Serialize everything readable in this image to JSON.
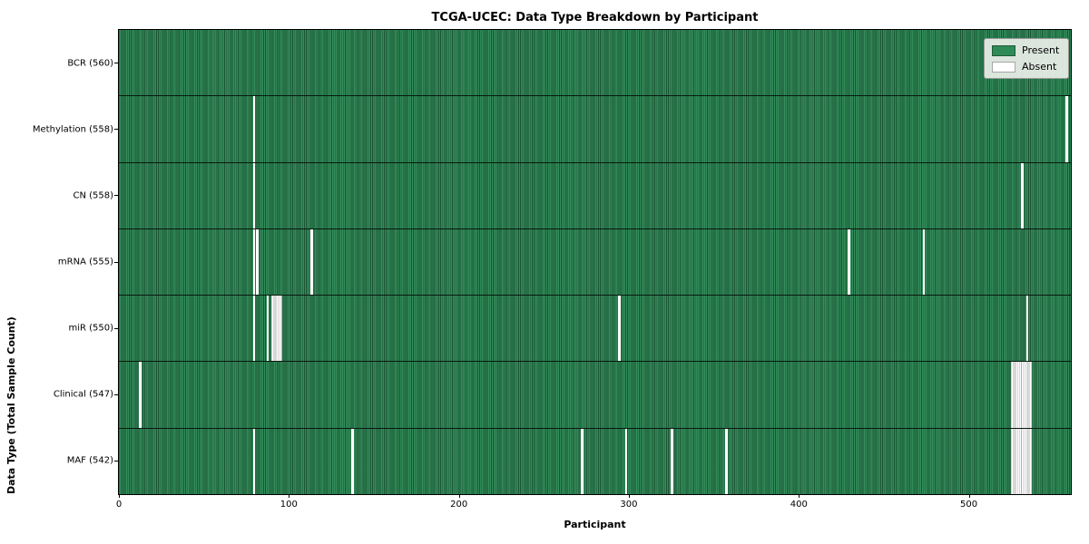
{
  "chart_data": {
    "type": "heatmap",
    "title": "TCGA-UCEC: Data Type Breakdown by Participant",
    "xlabel": "Participant",
    "ylabel": "Data Type (Total Sample Count)",
    "total_participants": 560,
    "x_ticks": [
      0,
      100,
      200,
      300,
      400,
      500
    ],
    "grid": false,
    "legend_position": "upper right",
    "legend": [
      {
        "label": "Present",
        "color": "#2e8b57"
      },
      {
        "label": "Absent",
        "color": "#ffffff"
      }
    ],
    "colors": {
      "present": "#2e8b57",
      "absent": "#ffffff",
      "column_edge": "rgba(0,0,0,0.40)",
      "row_separator": "#0a140c",
      "legend_bg": "#eff2ed"
    },
    "rows": [
      {
        "label": "BCR (560)",
        "data_type": "BCR",
        "present_count": 560,
        "absent_participants": []
      },
      {
        "label": "Methylation (558)",
        "data_type": "Methylation",
        "present_count": 558,
        "absent_participants": [
          79,
          557
        ]
      },
      {
        "label": "CN (558)",
        "data_type": "CN",
        "present_count": 558,
        "absent_participants": [
          79,
          531
        ]
      },
      {
        "label": "mRNA (555)",
        "data_type": "mRNA",
        "present_count": 555,
        "absent_participants": [
          79,
          81,
          113,
          429,
          473
        ]
      },
      {
        "label": "miR (550)",
        "data_type": "miR",
        "present_count": 550,
        "absent_participants": [
          79,
          87,
          90,
          91,
          92,
          93,
          94,
          95,
          294,
          534
        ]
      },
      {
        "label": "Clinical (547)",
        "data_type": "Clinical",
        "present_count": 547,
        "absent_participants": [
          12,
          525,
          526,
          527,
          528,
          529,
          530,
          531,
          532,
          533,
          534,
          535,
          536
        ]
      },
      {
        "label": "MAF (542)",
        "data_type": "MAF",
        "present_count": 542,
        "absent_participants": [
          79,
          137,
          272,
          298,
          325,
          357,
          525,
          526,
          527,
          528,
          529,
          530,
          531,
          532,
          533,
          534,
          535,
          536
        ]
      }
    ]
  }
}
